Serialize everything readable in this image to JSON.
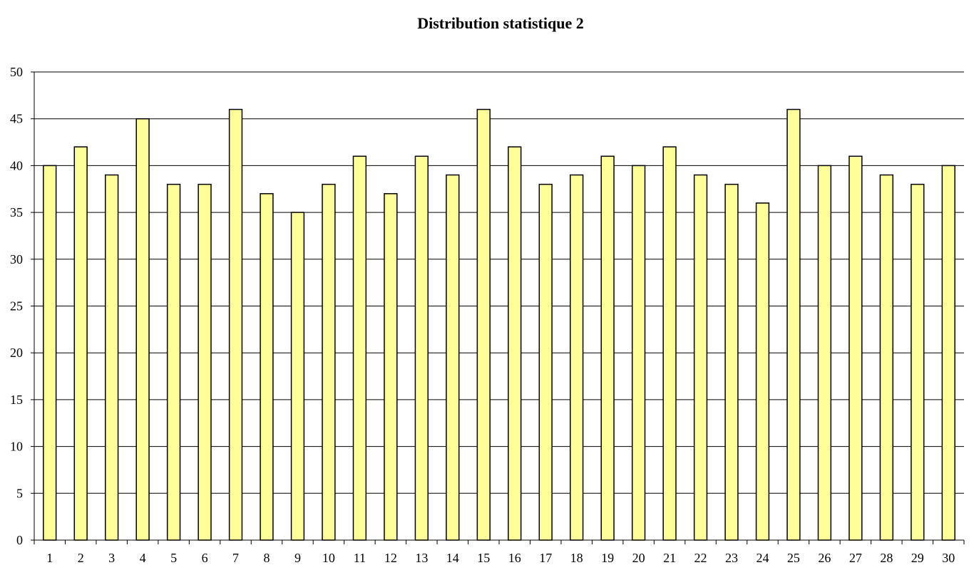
{
  "chart_data": {
    "type": "bar",
    "title": "Distribution statistique 2",
    "xlabel": "",
    "ylabel": "",
    "categories": [
      "1",
      "2",
      "3",
      "4",
      "5",
      "6",
      "7",
      "8",
      "9",
      "10",
      "11",
      "12",
      "13",
      "14",
      "15",
      "16",
      "17",
      "18",
      "19",
      "20",
      "21",
      "22",
      "23",
      "24",
      "25",
      "26",
      "27",
      "28",
      "29",
      "30"
    ],
    "values": [
      40,
      42,
      39,
      45,
      38,
      38,
      46,
      37,
      35,
      38,
      41,
      37,
      41,
      39,
      46,
      42,
      38,
      39,
      41,
      40,
      42,
      39,
      38,
      36,
      46,
      40,
      41,
      39,
      38,
      40
    ],
    "ylim": [
      0,
      50
    ],
    "yticks": [
      0,
      5,
      10,
      15,
      20,
      25,
      30,
      35,
      40,
      45,
      50
    ],
    "grid": true,
    "legend": "none",
    "colors": {
      "bar_fill": "#FFFF99",
      "bar_stroke": "#000000",
      "grid": "#000000"
    }
  }
}
